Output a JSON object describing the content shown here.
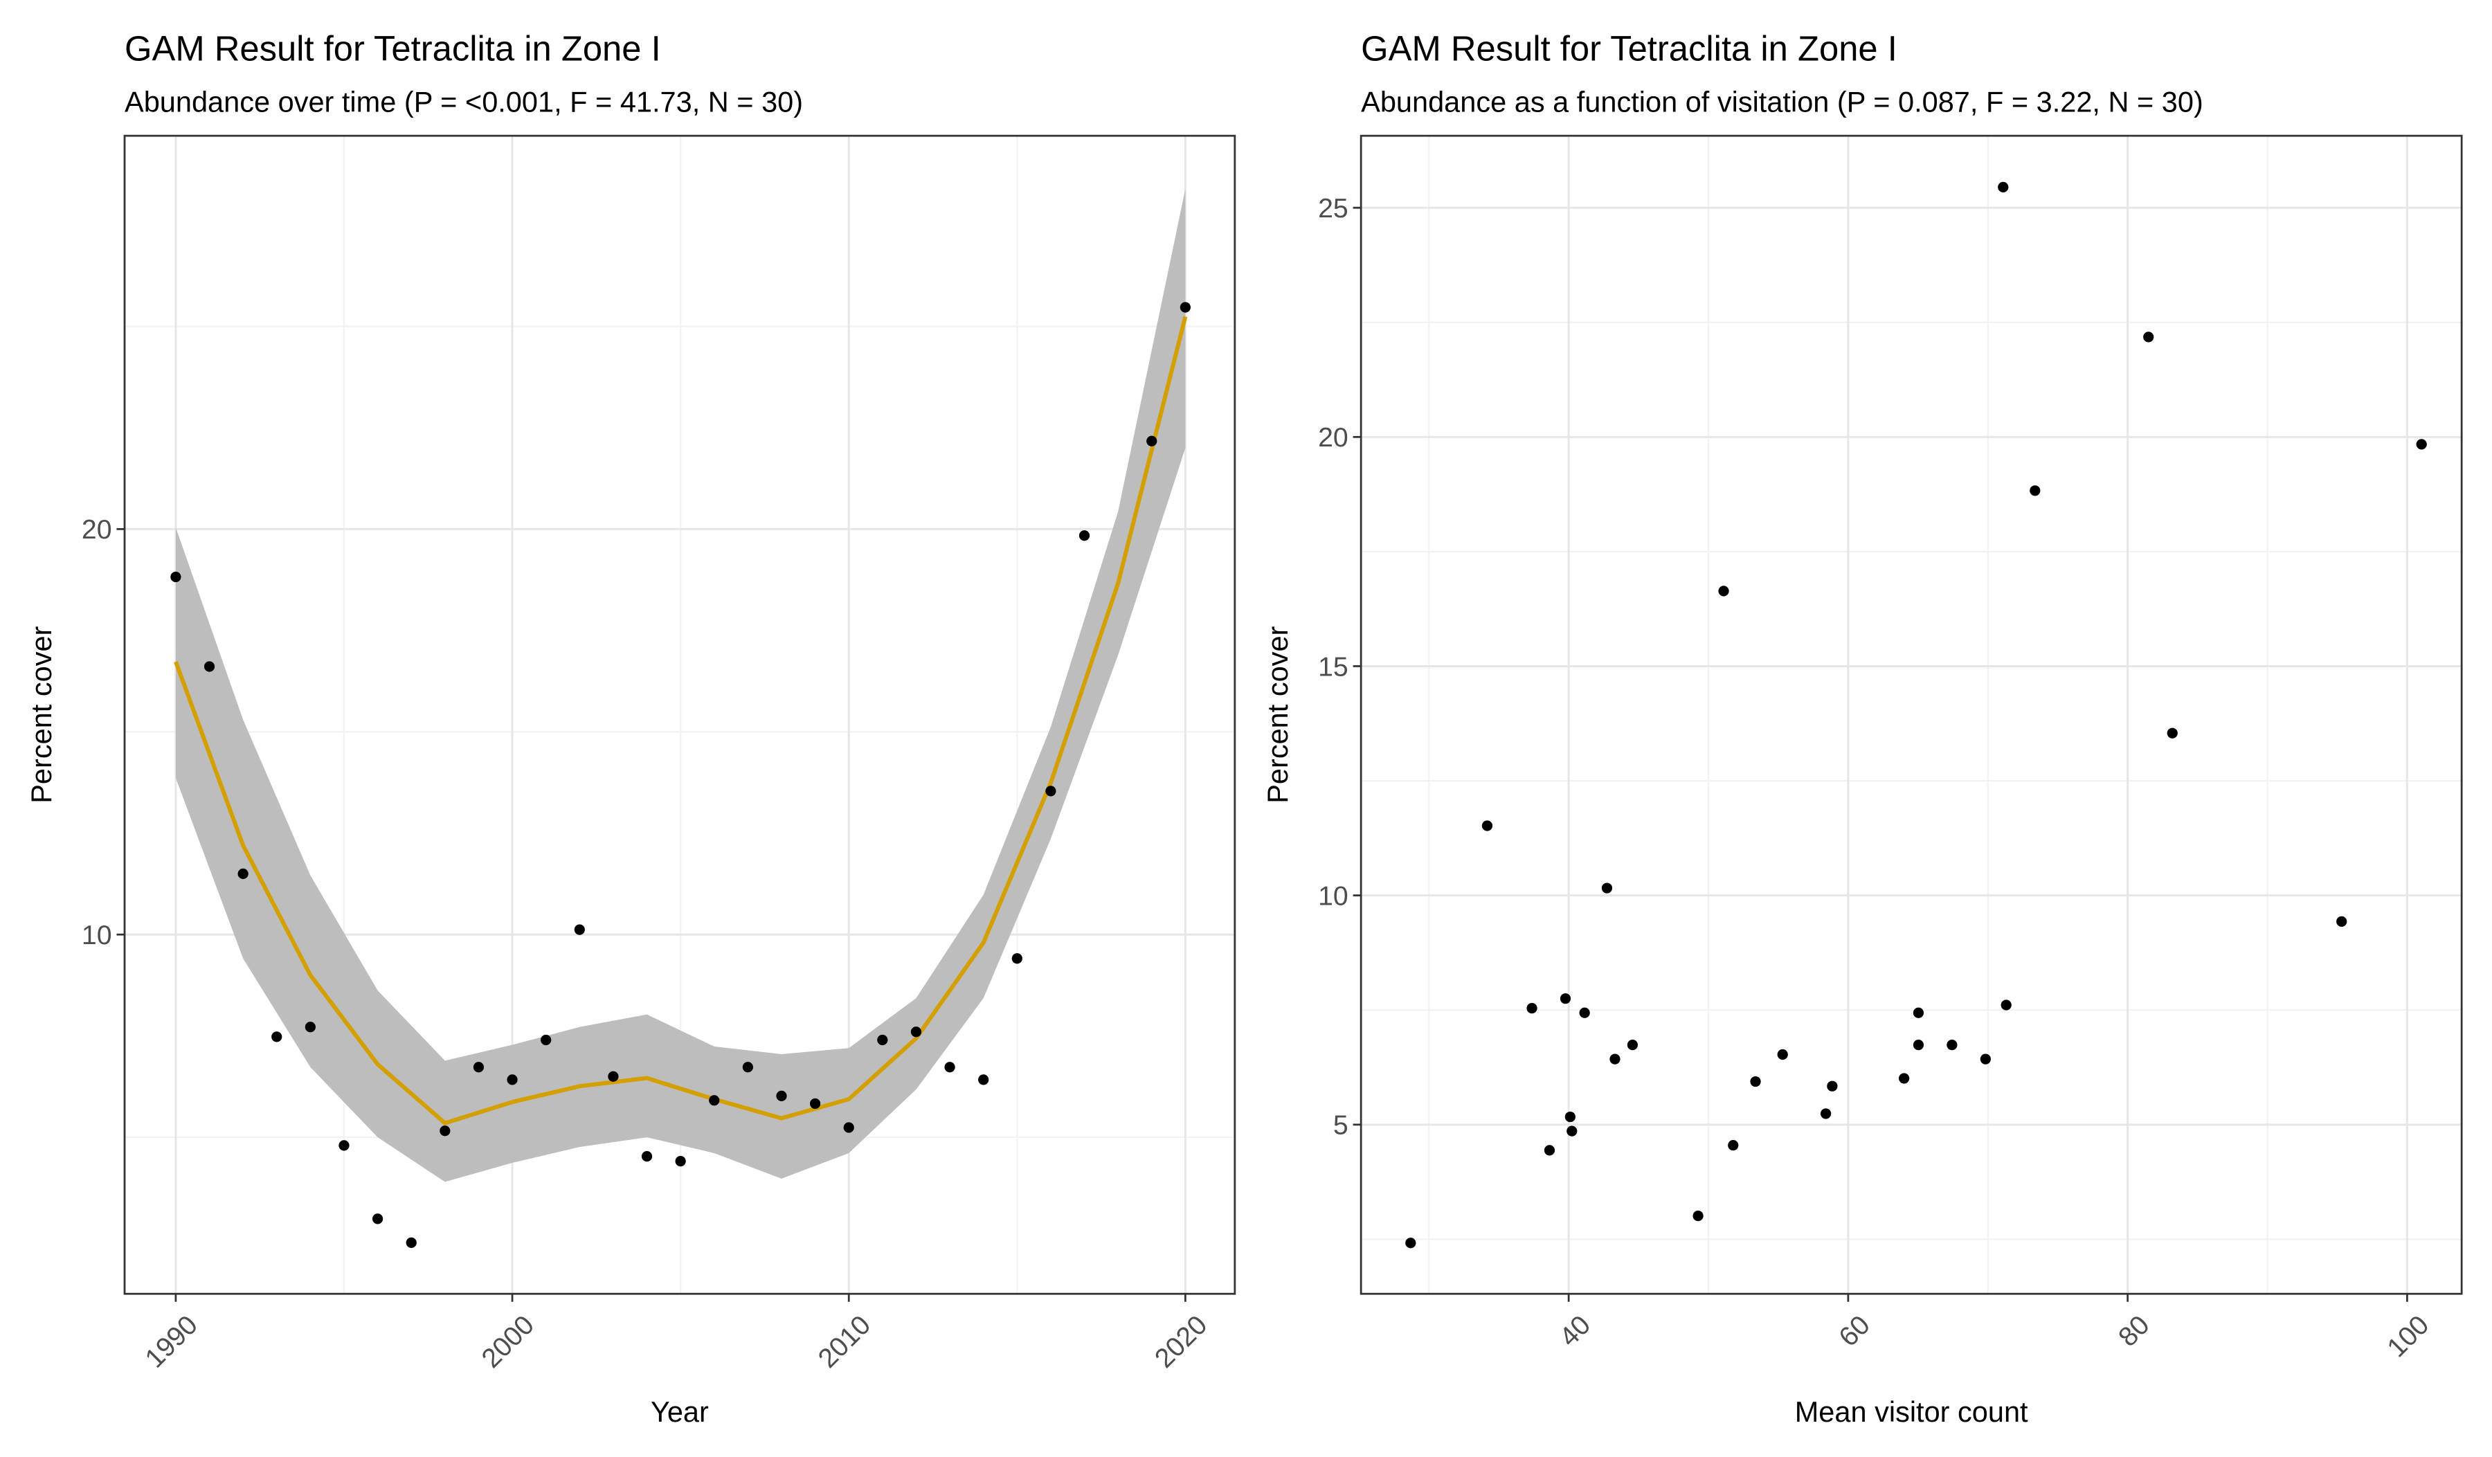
{
  "chart_data": [
    {
      "type": "scatter",
      "title": "GAM Result for Tetraclita in Zone I",
      "subtitle": "Abundance over time (P = <0.001, F = 41.73, N = 30)",
      "x_label": "Year",
      "y_label": "Percent cover",
      "x": [
        1990,
        1991,
        1992,
        1993,
        1994,
        1995,
        1996,
        1997,
        1998,
        1999,
        2000,
        2001,
        2002,
        2003,
        2004,
        2005,
        2006,
        2007,
        2008,
        2009,
        2010,
        2011,
        2012,
        2013,
        2014,
        2015,
        2016,
        2017,
        2019,
        2020
      ],
      "values": [
        18.82,
        16.61,
        11.5,
        7.48,
        7.72,
        4.8,
        2.99,
        2.4,
        5.16,
        6.73,
        6.42,
        7.4,
        10.12,
        6.5,
        4.53,
        4.41,
        5.91,
        6.73,
        6.02,
        5.83,
        5.24,
        7.4,
        7.6,
        6.73,
        6.42,
        9.41,
        13.54,
        19.84,
        22.17,
        25.47
      ],
      "color": "#000000",
      "smooth": {
        "color": "#D4A000",
        "band_color": "#bdbdbd",
        "x": [
          1990,
          1992,
          1994,
          1996,
          1998,
          2000,
          2002,
          2004,
          2006,
          2008,
          2010,
          2012,
          2014,
          2016,
          2018,
          2020
        ],
        "values": [
          16.73,
          12.2,
          9.0,
          6.8,
          5.35,
          5.87,
          6.26,
          6.46,
          5.94,
          5.47,
          5.94,
          7.44,
          9.8,
          13.74,
          18.66,
          25.24
        ],
        "lower": [
          13.86,
          9.41,
          6.73,
          5.0,
          3.9,
          4.37,
          4.76,
          5.0,
          4.61,
          3.98,
          4.61,
          6.18,
          8.43,
          12.36,
          16.89,
          22.0
        ],
        "upper": [
          20.04,
          15.3,
          11.46,
          8.62,
          6.89,
          7.28,
          7.72,
          8.03,
          7.24,
          7.05,
          7.2,
          8.43,
          10.98,
          15.12,
          20.43,
          28.39
        ]
      },
      "xlim": [
        1988.48,
        2021.47
      ],
      "xticks": [
        1990,
        2000,
        2010,
        2020
      ],
      "minor_xticks": [
        1995,
        2005,
        2015
      ],
      "ylim": [
        1.14,
        29.7
      ],
      "yticks": [
        10,
        20
      ],
      "minor_yticks": [
        5,
        15,
        25
      ],
      "grid": true
    },
    {
      "type": "scatter",
      "title": "GAM Result for Tetraclita in Zone I",
      "subtitle": "Abundance as a function of visitation (P = 0.087, F = 3.22, N = 30)",
      "x_label": "Mean visitor count",
      "y_label": "Percent cover",
      "x": [
        28.69,
        34.17,
        37.37,
        38.63,
        39.77,
        40.11,
        40.23,
        41.14,
        42.74,
        43.31,
        44.57,
        49.26,
        51.09,
        51.77,
        53.37,
        55.31,
        58.4,
        58.86,
        64.0,
        65.03,
        65.03,
        67.43,
        69.83,
        71.09,
        71.31,
        73.37,
        81.49,
        83.2,
        95.31,
        101.03
      ],
      "values": [
        2.42,
        11.52,
        7.54,
        4.44,
        7.75,
        5.17,
        4.86,
        7.44,
        10.16,
        6.43,
        6.74,
        3.01,
        16.64,
        4.55,
        5.94,
        6.53,
        5.24,
        5.84,
        6.01,
        7.44,
        6.74,
        6.74,
        6.43,
        25.45,
        7.61,
        18.83,
        22.18,
        13.54,
        9.43,
        19.84
      ],
      "color": "#000000",
      "xlim": [
        25.14,
        103.9
      ],
      "xticks": [
        40,
        60,
        80,
        100
      ],
      "minor_xticks": [
        30,
        50,
        70,
        90
      ],
      "ylim": [
        1.31,
        26.57
      ],
      "yticks": [
        5,
        10,
        15,
        20,
        25
      ],
      "minor_yticks": [
        2.5,
        7.5,
        12.5,
        17.5,
        22.5
      ],
      "grid": true
    }
  ]
}
